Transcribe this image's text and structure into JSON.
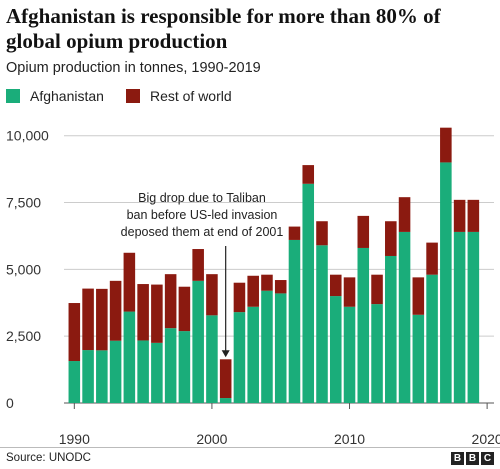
{
  "header": {
    "title": "Afghanistan is responsible for more than 80% of global opium production",
    "subtitle": "Opium production in tonnes, 1990-2019"
  },
  "legend": [
    {
      "label": "Afghanistan",
      "color": "#1aad7a"
    },
    {
      "label": "Rest of world",
      "color": "#8b1a10"
    }
  ],
  "footer": {
    "source": "Source: UNODC",
    "logo_letters": [
      "B",
      "B",
      "C"
    ]
  },
  "chart_data": {
    "type": "bar",
    "stacked": true,
    "categories": [
      "1990",
      "1991",
      "1992",
      "1993",
      "1994",
      "1995",
      "1996",
      "1997",
      "1998",
      "1999",
      "2000",
      "2001",
      "2002",
      "2003",
      "2004",
      "2005",
      "2006",
      "2007",
      "2008",
      "2009",
      "2010",
      "2011",
      "2012",
      "2013",
      "2014",
      "2015",
      "2016",
      "2017",
      "2018",
      "2019"
    ],
    "series": [
      {
        "name": "Afghanistan",
        "color": "#1aad7a",
        "values": [
          1570,
          1980,
          1970,
          2330,
          3420,
          2340,
          2250,
          2800,
          2690,
          4570,
          3280,
          185,
          3400,
          3600,
          4200,
          4100,
          6100,
          8200,
          5900,
          4000,
          3600,
          5800,
          3700,
          5500,
          6400,
          3300,
          4800,
          9000,
          6400,
          6400
        ]
      },
      {
        "name": "Rest of world",
        "color": "#8b1a10",
        "values": [
          2170,
          2300,
          2300,
          2240,
          2200,
          2110,
          2180,
          2020,
          1660,
          1190,
          1540,
          1450,
          1100,
          1160,
          600,
          500,
          500,
          700,
          900,
          800,
          1100,
          1200,
          1100,
          1300,
          1300,
          1400,
          1200,
          1300,
          1200,
          1200
        ]
      }
    ],
    "ylim": [
      0,
      10400
    ],
    "yticks": [
      0,
      2500,
      5000,
      7500,
      10000
    ],
    "ytick_labels": [
      "0",
      "2,500",
      "5,000",
      "7,500",
      "10,000"
    ],
    "xlim": [
      1989.25,
      2020.5
    ],
    "xticks": [
      1990,
      2000,
      2010,
      2020
    ],
    "xtick_labels": [
      "1990",
      "2000",
      "2010",
      "2020"
    ],
    "grid": "horizontal",
    "annotation": {
      "lines": [
        "Big drop due to Taliban",
        "ban before US-led invasion",
        "deposed them at end of 2001"
      ],
      "year": 2001
    }
  }
}
